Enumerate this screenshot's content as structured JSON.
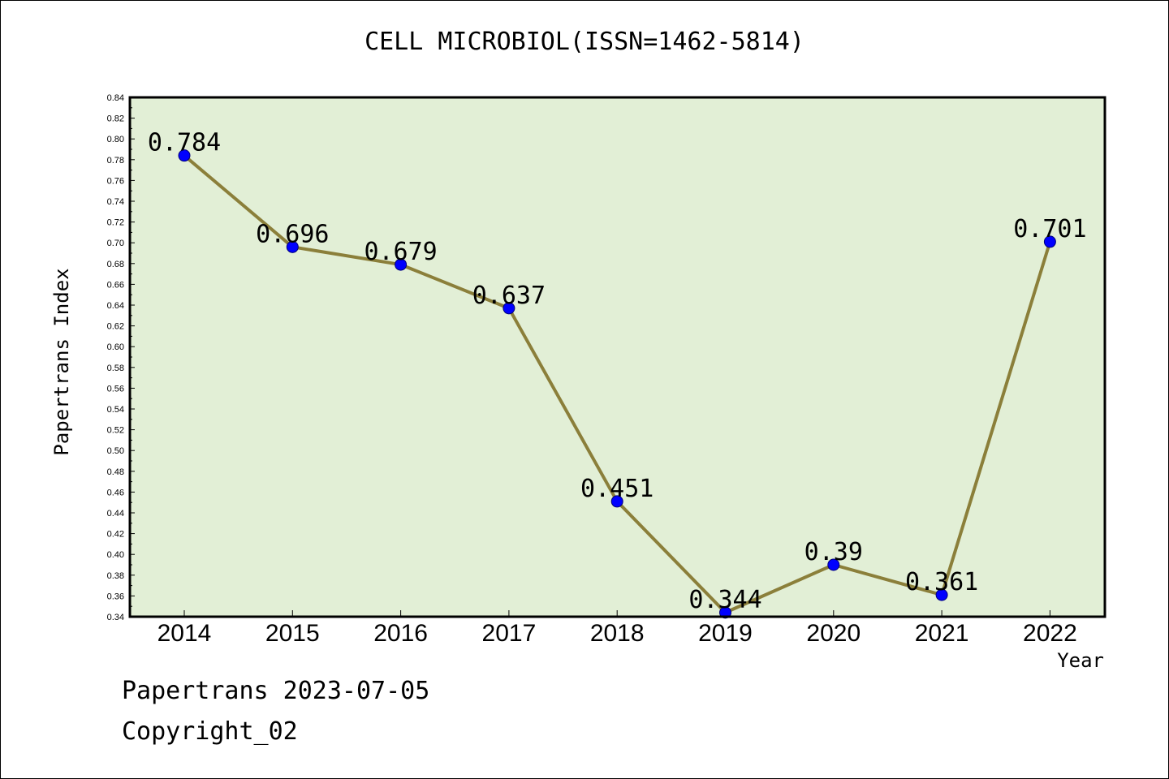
{
  "chart_data": {
    "type": "line",
    "title": "CELL MICROBIOL(ISSN=1462-5814)",
    "xlabel": "Year",
    "ylabel": "Papertrans Index",
    "categories": [
      "2014",
      "2015",
      "2016",
      "2017",
      "2018",
      "2019",
      "2020",
      "2021",
      "2022"
    ],
    "values": [
      0.784,
      0.696,
      0.679,
      0.637,
      0.451,
      0.344,
      0.39,
      0.361,
      0.701
    ],
    "data_labels": [
      "0.784",
      "0.696",
      "0.679",
      "0.637",
      "0.451",
      "0.344",
      "0.39",
      "0.361",
      "0.701"
    ],
    "ylim": [
      0.34,
      0.84
    ],
    "yticks": [
      "0.34",
      "0.36",
      "0.38",
      "0.40",
      "0.42",
      "0.44",
      "0.46",
      "0.48",
      "0.50",
      "0.52",
      "0.54",
      "0.56",
      "0.58",
      "0.60",
      "0.62",
      "0.64",
      "0.66",
      "0.68",
      "0.70",
      "0.72",
      "0.74",
      "0.76",
      "0.78",
      "0.80",
      "0.82",
      "0.84"
    ],
    "grid": false,
    "colors": {
      "plot_background": "#e2efd6",
      "line": "#8b7f3a",
      "marker": "#0000ff"
    }
  },
  "footer": {
    "date_line": "Papertrans 2023-07-05",
    "copyright": "Copyright_02"
  }
}
